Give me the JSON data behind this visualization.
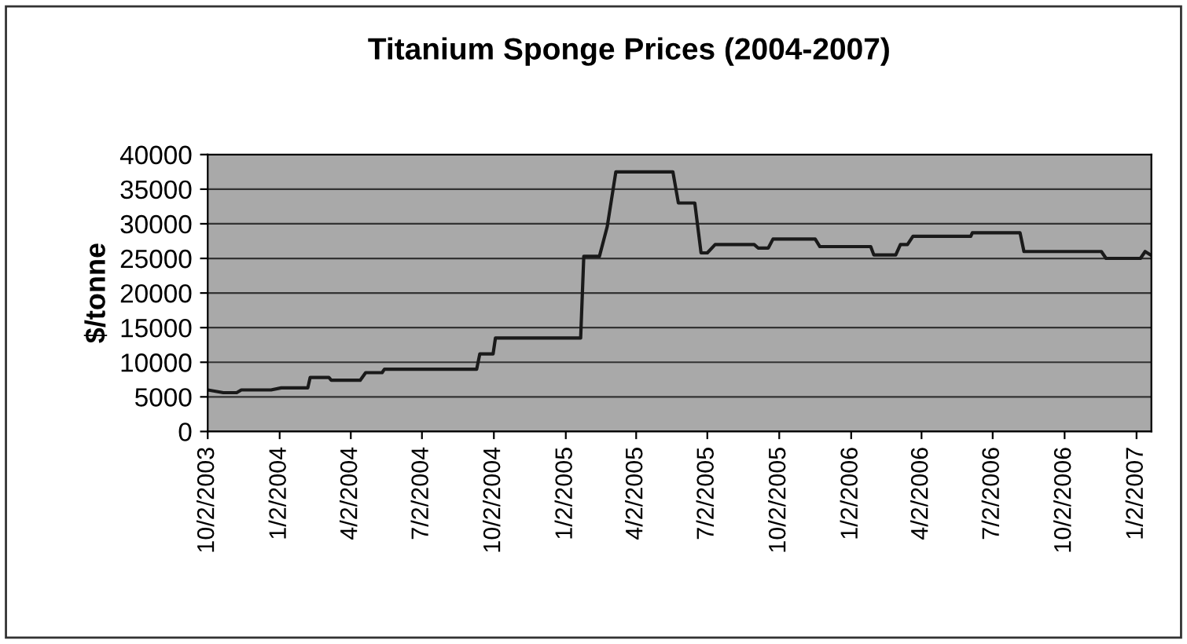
{
  "chart_data": {
    "type": "line",
    "title": "Titanium Sponge Prices (2004-2007)",
    "ylabel": "$/tonne",
    "x": [
      "2003-10-02",
      "2003-10-22",
      "2003-11-08",
      "2003-11-14",
      "2003-12-22",
      "2004-01-04",
      "2004-02-07",
      "2004-02-10",
      "2004-03-05",
      "2004-03-08",
      "2004-04-14",
      "2004-04-21",
      "2004-05-12",
      "2004-05-15",
      "2004-09-10",
      "2004-09-14",
      "2004-10-01",
      "2004-10-04",
      "2005-01-21",
      "2005-01-25",
      "2005-02-14",
      "2005-02-24",
      "2005-03-07",
      "2005-05-19",
      "2005-05-26",
      "2005-06-16",
      "2005-06-24",
      "2005-07-02",
      "2005-07-12",
      "2005-08-31",
      "2005-09-05",
      "2005-09-18",
      "2005-09-24",
      "2005-11-17",
      "2005-11-23",
      "2006-01-27",
      "2006-01-31",
      "2006-02-28",
      "2006-03-06",
      "2006-03-15",
      "2006-03-22",
      "2006-06-04",
      "2006-06-06",
      "2006-08-06",
      "2006-08-11",
      "2006-11-18",
      "2006-11-24",
      "2007-01-07",
      "2007-01-13",
      "2007-01-20"
    ],
    "series": [
      {
        "color": "#1a1a1a",
        "values": [
          6000,
          5600,
          5600,
          6000,
          6000,
          6300,
          6300,
          7800,
          7800,
          7400,
          7400,
          8500,
          8500,
          9000,
          9000,
          11200,
          11200,
          13500,
          13500,
          25300,
          25300,
          29600,
          37500,
          37500,
          33000,
          33000,
          25800,
          25800,
          27000,
          27000,
          26500,
          26500,
          27800,
          27800,
          26700,
          26700,
          25500,
          25500,
          27000,
          27000,
          28200,
          28200,
          28700,
          28700,
          26000,
          26000,
          25000,
          25000,
          26000,
          25500
        ]
      }
    ],
    "xlim": [
      "2003-10-02",
      "2007-01-21"
    ],
    "xticks": [
      {
        "value": "2003-10-02",
        "label": "10/2/2003"
      },
      {
        "value": "2004-01-02",
        "label": "1/2/2004"
      },
      {
        "value": "2004-04-02",
        "label": "4/2/2004"
      },
      {
        "value": "2004-07-02",
        "label": "7/2/2004"
      },
      {
        "value": "2004-10-02",
        "label": "10/2/2004"
      },
      {
        "value": "2005-01-02",
        "label": "1/2/2005"
      },
      {
        "value": "2005-04-02",
        "label": "4/2/2005"
      },
      {
        "value": "2005-07-02",
        "label": "7/2/2005"
      },
      {
        "value": "2005-10-02",
        "label": "10/2/2005"
      },
      {
        "value": "2006-01-02",
        "label": "1/2/2006"
      },
      {
        "value": "2006-04-02",
        "label": "4/2/2006"
      },
      {
        "value": "2006-07-02",
        "label": "7/2/2006"
      },
      {
        "value": "2006-10-02",
        "label": "10/2/2006"
      },
      {
        "value": "2007-01-02",
        "label": "1/2/2007"
      }
    ],
    "ylim": [
      0,
      40000
    ],
    "yticks": [
      0,
      5000,
      10000,
      15000,
      20000,
      25000,
      30000,
      35000,
      40000
    ],
    "grid": "y",
    "legend": false,
    "marker": "none",
    "line_style": "solid"
  }
}
